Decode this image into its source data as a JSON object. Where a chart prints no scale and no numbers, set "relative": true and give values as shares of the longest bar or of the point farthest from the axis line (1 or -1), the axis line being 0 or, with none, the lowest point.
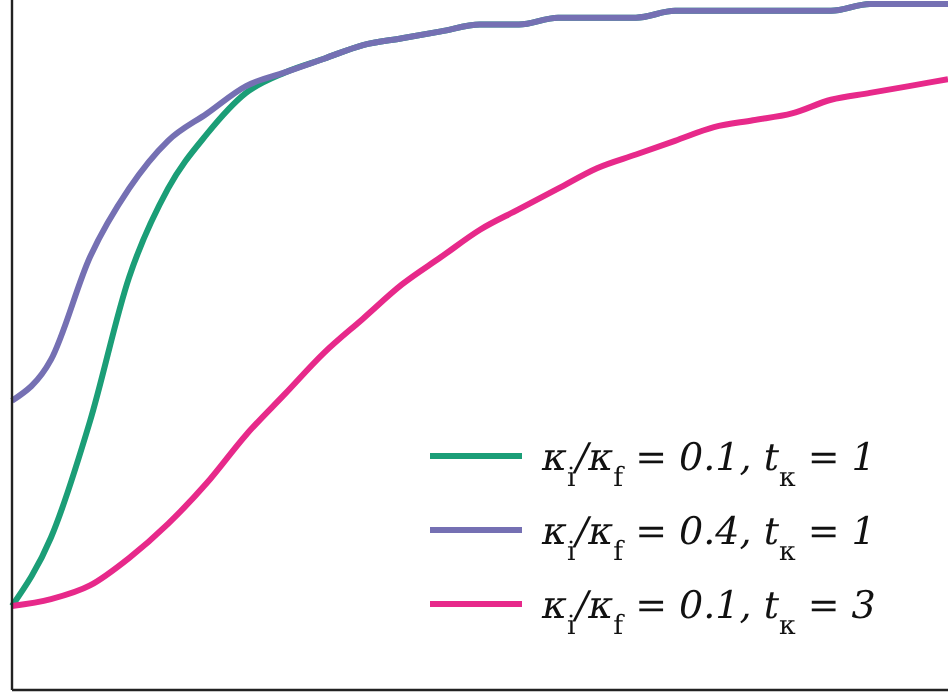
{
  "chart_data": {
    "type": "line",
    "relative": true,
    "legend": "bottom right",
    "categories": [
      null,
      null,
      null,
      null,
      null,
      null,
      null,
      null,
      null,
      null,
      null,
      null,
      null,
      null,
      null,
      null,
      null,
      null,
      null,
      null,
      null,
      null,
      null,
      null,
      null
    ],
    "series": [
      {
        "name": "κ$_{i}$/κ$_{f}$ = 0.1, t$_{κ}$ = 1",
        "color": "#1b9e77",
        "values": [
          0.12,
          0.22,
          0.39,
          0.6,
          0.73,
          0.81,
          0.87,
          0.9,
          0.92,
          0.94,
          0.95,
          0.96,
          0.97,
          0.97,
          0.98,
          0.98,
          0.98,
          0.99,
          0.99,
          0.99,
          0.99,
          0.99,
          1.0,
          1.0,
          1.0
        ]
      },
      {
        "name": "κ$_{i}$/κ$_{f}$ = 0.4, t$_{κ}$ = 1",
        "color": "#7570b3",
        "values": [
          0.42,
          0.48,
          0.63,
          0.73,
          0.8,
          0.84,
          0.88,
          0.9,
          0.92,
          0.94,
          0.95,
          0.96,
          0.97,
          0.97,
          0.98,
          0.98,
          0.98,
          0.99,
          0.99,
          0.99,
          0.99,
          0.99,
          1.0,
          1.0,
          1.0
        ]
      },
      {
        "name": "κ$_{i}$/κ$_{f}$ = 0.1, t$_{κ}$ = 3",
        "color": "#e7298a",
        "values": [
          0.12,
          0.13,
          0.15,
          0.19,
          0.24,
          0.3,
          0.37,
          0.43,
          0.49,
          0.54,
          0.59,
          0.63,
          0.67,
          0.7,
          0.73,
          0.76,
          0.78,
          0.8,
          0.82,
          0.83,
          0.84,
          0.86,
          0.87,
          0.88,
          0.89
        ]
      }
    ]
  }
}
